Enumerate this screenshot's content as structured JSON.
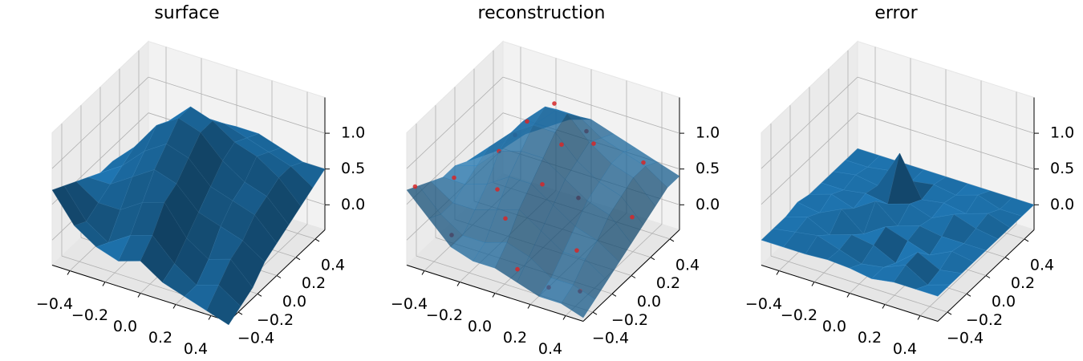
{
  "chart_data": [
    {
      "type": "surface3d",
      "title": "surface",
      "color": "#1f77b4",
      "x": [
        -0.5,
        -0.375,
        -0.25,
        -0.125,
        0,
        0.125,
        0.25,
        0.375,
        0.5
      ],
      "y": [
        -0.5,
        -0.375,
        -0.25,
        -0.125,
        0,
        0.125,
        0.25,
        0.375,
        0.5
      ],
      "z": [
        [
          0.7,
          0.3,
          0.1,
          0.0,
          0.1,
          -0.1,
          -0.2,
          -0.3,
          -0.4
        ],
        [
          0.6,
          0.2,
          0.0,
          0.2,
          0.3,
          0.0,
          -0.2,
          -0.1,
          -0.3
        ],
        [
          0.5,
          0.3,
          0.3,
          0.5,
          0.6,
          0.2,
          0.0,
          0.1,
          -0.2
        ],
        [
          0.4,
          0.4,
          0.6,
          0.8,
          0.7,
          0.4,
          0.3,
          0.2,
          0.0
        ],
        [
          0.3,
          0.5,
          0.8,
          1.0,
          0.9,
          0.6,
          0.5,
          0.4,
          0.1
        ],
        [
          0.3,
          0.6,
          1.0,
          1.2,
          1.1,
          0.8,
          0.6,
          0.5,
          0.2
        ],
        [
          0.2,
          0.5,
          0.9,
          1.2,
          1.1,
          0.9,
          0.8,
          0.6,
          0.3
        ],
        [
          0.1,
          0.4,
          0.7,
          0.9,
          0.9,
          0.8,
          0.7,
          0.6,
          0.4
        ],
        [
          0.0,
          0.3,
          0.5,
          0.6,
          0.7,
          0.7,
          0.6,
          0.5,
          0.5
        ]
      ],
      "xlim": [
        -0.5,
        0.5
      ],
      "ylim": [
        -0.5,
        0.5
      ],
      "zlim": [
        -0.35,
        1.5
      ],
      "xticks": [
        {
          "value": -0.4,
          "label": "−0.4"
        },
        {
          "value": -0.2,
          "label": "−0.2"
        },
        {
          "value": 0,
          "label": "0.0"
        },
        0.2,
        0.4
      ],
      "yticks": [
        {
          "value": -0.4,
          "label": "−0.4"
        },
        {
          "value": -0.2,
          "label": "−0.2"
        },
        {
          "value": 0,
          "label": "0.0"
        },
        0.2,
        0.4
      ],
      "zticks": [
        {
          "value": 0,
          "label": "0.0"
        },
        0.5,
        {
          "value": 1,
          "label": "1.0"
        }
      ]
    },
    {
      "type": "surface3d",
      "title": "reconstruction",
      "color": "#1f77b4",
      "alpha": 0.75,
      "x": [
        -0.5,
        -0.375,
        -0.25,
        -0.125,
        0,
        0.125,
        0.25,
        0.375,
        0.5
      ],
      "y": [
        -0.5,
        -0.375,
        -0.25,
        -0.125,
        0,
        0.125,
        0.25,
        0.375,
        0.5
      ],
      "z": [
        [
          0.7,
          0.4,
          0.1,
          0.0,
          0.0,
          -0.1,
          -0.2,
          -0.2,
          -0.3
        ],
        [
          0.6,
          0.3,
          0.1,
          0.1,
          0.2,
          0.1,
          -0.1,
          -0.1,
          -0.2
        ],
        [
          0.5,
          0.3,
          0.3,
          0.4,
          0.5,
          0.3,
          0.1,
          0.1,
          -0.1
        ],
        [
          0.4,
          0.4,
          0.5,
          0.7,
          0.7,
          0.5,
          0.3,
          0.2,
          0.0
        ],
        [
          0.4,
          0.5,
          0.8,
          0.9,
          0.9,
          0.7,
          0.5,
          0.4,
          0.1
        ],
        [
          0.3,
          0.6,
          0.9,
          1.1,
          1.1,
          0.8,
          0.6,
          0.5,
          0.2
        ],
        [
          0.2,
          0.5,
          0.9,
          1.2,
          1.2,
          0.9,
          0.7,
          0.6,
          0.3
        ],
        [
          0.1,
          0.4,
          0.7,
          1.0,
          1.0,
          0.8,
          0.7,
          0.6,
          0.4
        ],
        [
          0.0,
          0.3,
          0.5,
          0.7,
          0.8,
          0.7,
          0.6,
          0.5,
          0.4
        ]
      ],
      "points": {
        "color": "#d62728",
        "x": [
          -0.48,
          -0.45,
          -0.3,
          -0.2,
          -0.1,
          -0.05,
          0.05,
          0.1,
          0.2,
          0.3,
          0.35,
          0.45,
          -0.35,
          -0.15,
          0.0,
          0.15,
          0.25,
          0.4,
          -0.25,
          0.05
        ],
        "y": [
          -0.45,
          -0.1,
          -0.4,
          0.2,
          0.3,
          -0.3,
          0.1,
          -0.45,
          0.0,
          -0.2,
          0.4,
          0.1,
          0.35,
          -0.2,
          0.45,
          0.25,
          -0.4,
          -0.35,
          0.0,
          -0.1
        ],
        "z": [
          0.7,
          0.4,
          0.1,
          1.0,
          1.2,
          0.4,
          1.0,
          0.0,
          0.5,
          0.1,
          0.6,
          0.3,
          0.5,
          0.6,
          0.7,
          0.9,
          -0.2,
          -0.2,
          0.8,
          0.7
        ]
      },
      "xlim": [
        -0.5,
        0.5
      ],
      "ylim": [
        -0.5,
        0.5
      ],
      "zlim": [
        -0.35,
        1.5
      ],
      "xticks": [
        {
          "value": -0.4,
          "label": "−0.4"
        },
        {
          "value": -0.2,
          "label": "−0.2"
        },
        {
          "value": 0,
          "label": "0.0"
        },
        0.2,
        0.4
      ],
      "yticks": [
        {
          "value": -0.4,
          "label": "−0.4"
        },
        {
          "value": -0.2,
          "label": "−0.2"
        },
        {
          "value": 0,
          "label": "0.0"
        },
        0.2,
        0.4
      ],
      "zticks": [
        {
          "value": 0,
          "label": "0.0"
        },
        0.5,
        {
          "value": 1,
          "label": "1.0"
        }
      ]
    },
    {
      "type": "surface3d",
      "title": "error",
      "color": "#1f77b4",
      "x": [
        -0.5,
        -0.375,
        -0.25,
        -0.125,
        0,
        0.125,
        0.25,
        0.375,
        0.5
      ],
      "y": [
        -0.5,
        -0.375,
        -0.25,
        -0.125,
        0,
        0.125,
        0.25,
        0.375,
        0.5
      ],
      "z": [
        [
          0,
          0,
          0,
          0.02,
          0,
          -0.05,
          0,
          0,
          0
        ],
        [
          0,
          0.05,
          0.1,
          0,
          -0.1,
          -0.05,
          0.08,
          -0.1,
          0
        ],
        [
          0,
          0.1,
          -0.05,
          0.05,
          0,
          -0.15,
          0.1,
          -0.05,
          0
        ],
        [
          0.05,
          0,
          0.15,
          -0.1,
          0.1,
          0,
          -0.1,
          0.05,
          0
        ],
        [
          0,
          0.1,
          0,
          0.2,
          -0.05,
          0.05,
          0,
          0,
          0
        ],
        [
          0,
          0,
          0.05,
          0,
          0.1,
          0,
          0.15,
          0.05,
          0
        ],
        [
          0,
          0.05,
          0,
          0.55,
          0,
          0.05,
          0,
          0.1,
          0
        ],
        [
          0,
          0,
          0.05,
          0,
          0.05,
          0,
          0.1,
          0,
          0
        ],
        [
          0,
          0,
          0,
          0,
          0,
          0,
          0,
          0,
          0
        ]
      ],
      "xlim": [
        -0.5,
        0.5
      ],
      "ylim": [
        -0.5,
        0.5
      ],
      "zlim": [
        -0.35,
        1.5
      ],
      "xticks": [
        {
          "value": -0.4,
          "label": "−0.4"
        },
        {
          "value": -0.2,
          "label": "−0.2"
        },
        {
          "value": 0,
          "label": "0.0"
        },
        0.2,
        0.4
      ],
      "yticks": [
        {
          "value": -0.4,
          "label": "−0.4"
        },
        {
          "value": -0.2,
          "label": "−0.2"
        },
        {
          "value": 0,
          "label": "0.0"
        },
        0.2,
        0.4
      ],
      "zticks": [
        {
          "value": 0,
          "label": "0.0"
        },
        0.5,
        {
          "value": 1,
          "label": "1.0"
        }
      ]
    }
  ]
}
